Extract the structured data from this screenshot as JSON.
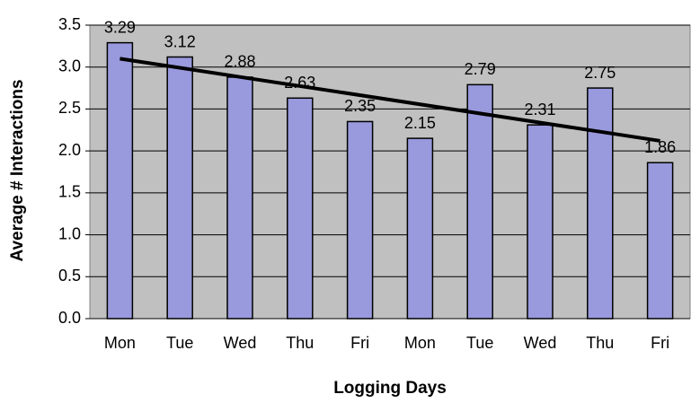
{
  "chart_data": {
    "type": "bar",
    "x_label": "Logging Days",
    "y_label": "Average # Interactions",
    "categories": [
      "Mon",
      "Tue",
      "Wed",
      "Thu",
      "Fri",
      "Mon",
      "Tue",
      "Wed",
      "Thu",
      "Fri"
    ],
    "values": [
      3.29,
      3.12,
      2.88,
      2.63,
      2.35,
      2.15,
      2.79,
      2.31,
      2.75,
      1.86
    ],
    "color": "#9999dd",
    "trend_line": [
      3.1,
      2.12
    ],
    "ylim": [
      0,
      3.5
    ],
    "yticks": [
      {
        "value": 0,
        "label": "0.0"
      },
      0.5,
      {
        "value": 1,
        "label": "1.0"
      },
      1.5,
      {
        "value": 2,
        "label": "2.0"
      },
      2.5,
      {
        "value": 3,
        "label": "3.0"
      },
      3.5
    ],
    "grid": true
  }
}
